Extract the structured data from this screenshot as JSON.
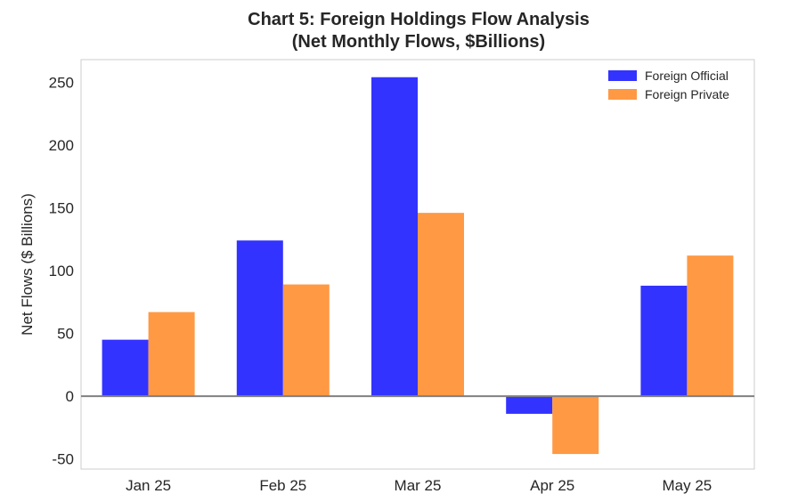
{
  "chart_data": {
    "type": "bar",
    "title": "Chart 5: Foreign Holdings Flow Analysis",
    "subtitle": "(Net Monthly Flows, $Billions)",
    "xlabel": "",
    "ylabel": "Net Flows ($ Billions)",
    "categories": [
      "Jan 25",
      "Feb 25",
      "Mar 25",
      "Apr 25",
      "May 25"
    ],
    "series": [
      {
        "name": "Foreign Official",
        "color": "#3333ff",
        "values": [
          45,
          124,
          254,
          -14,
          88
        ]
      },
      {
        "name": "Foreign Private",
        "color": "#ff9944",
        "values": [
          67,
          89,
          146,
          -46,
          112
        ]
      }
    ],
    "ylim": [
      -58,
      268
    ],
    "yticks": [
      -50,
      0,
      50,
      100,
      150,
      200,
      250
    ],
    "grid": false,
    "zero_line": true,
    "legend_position": "top-right"
  }
}
